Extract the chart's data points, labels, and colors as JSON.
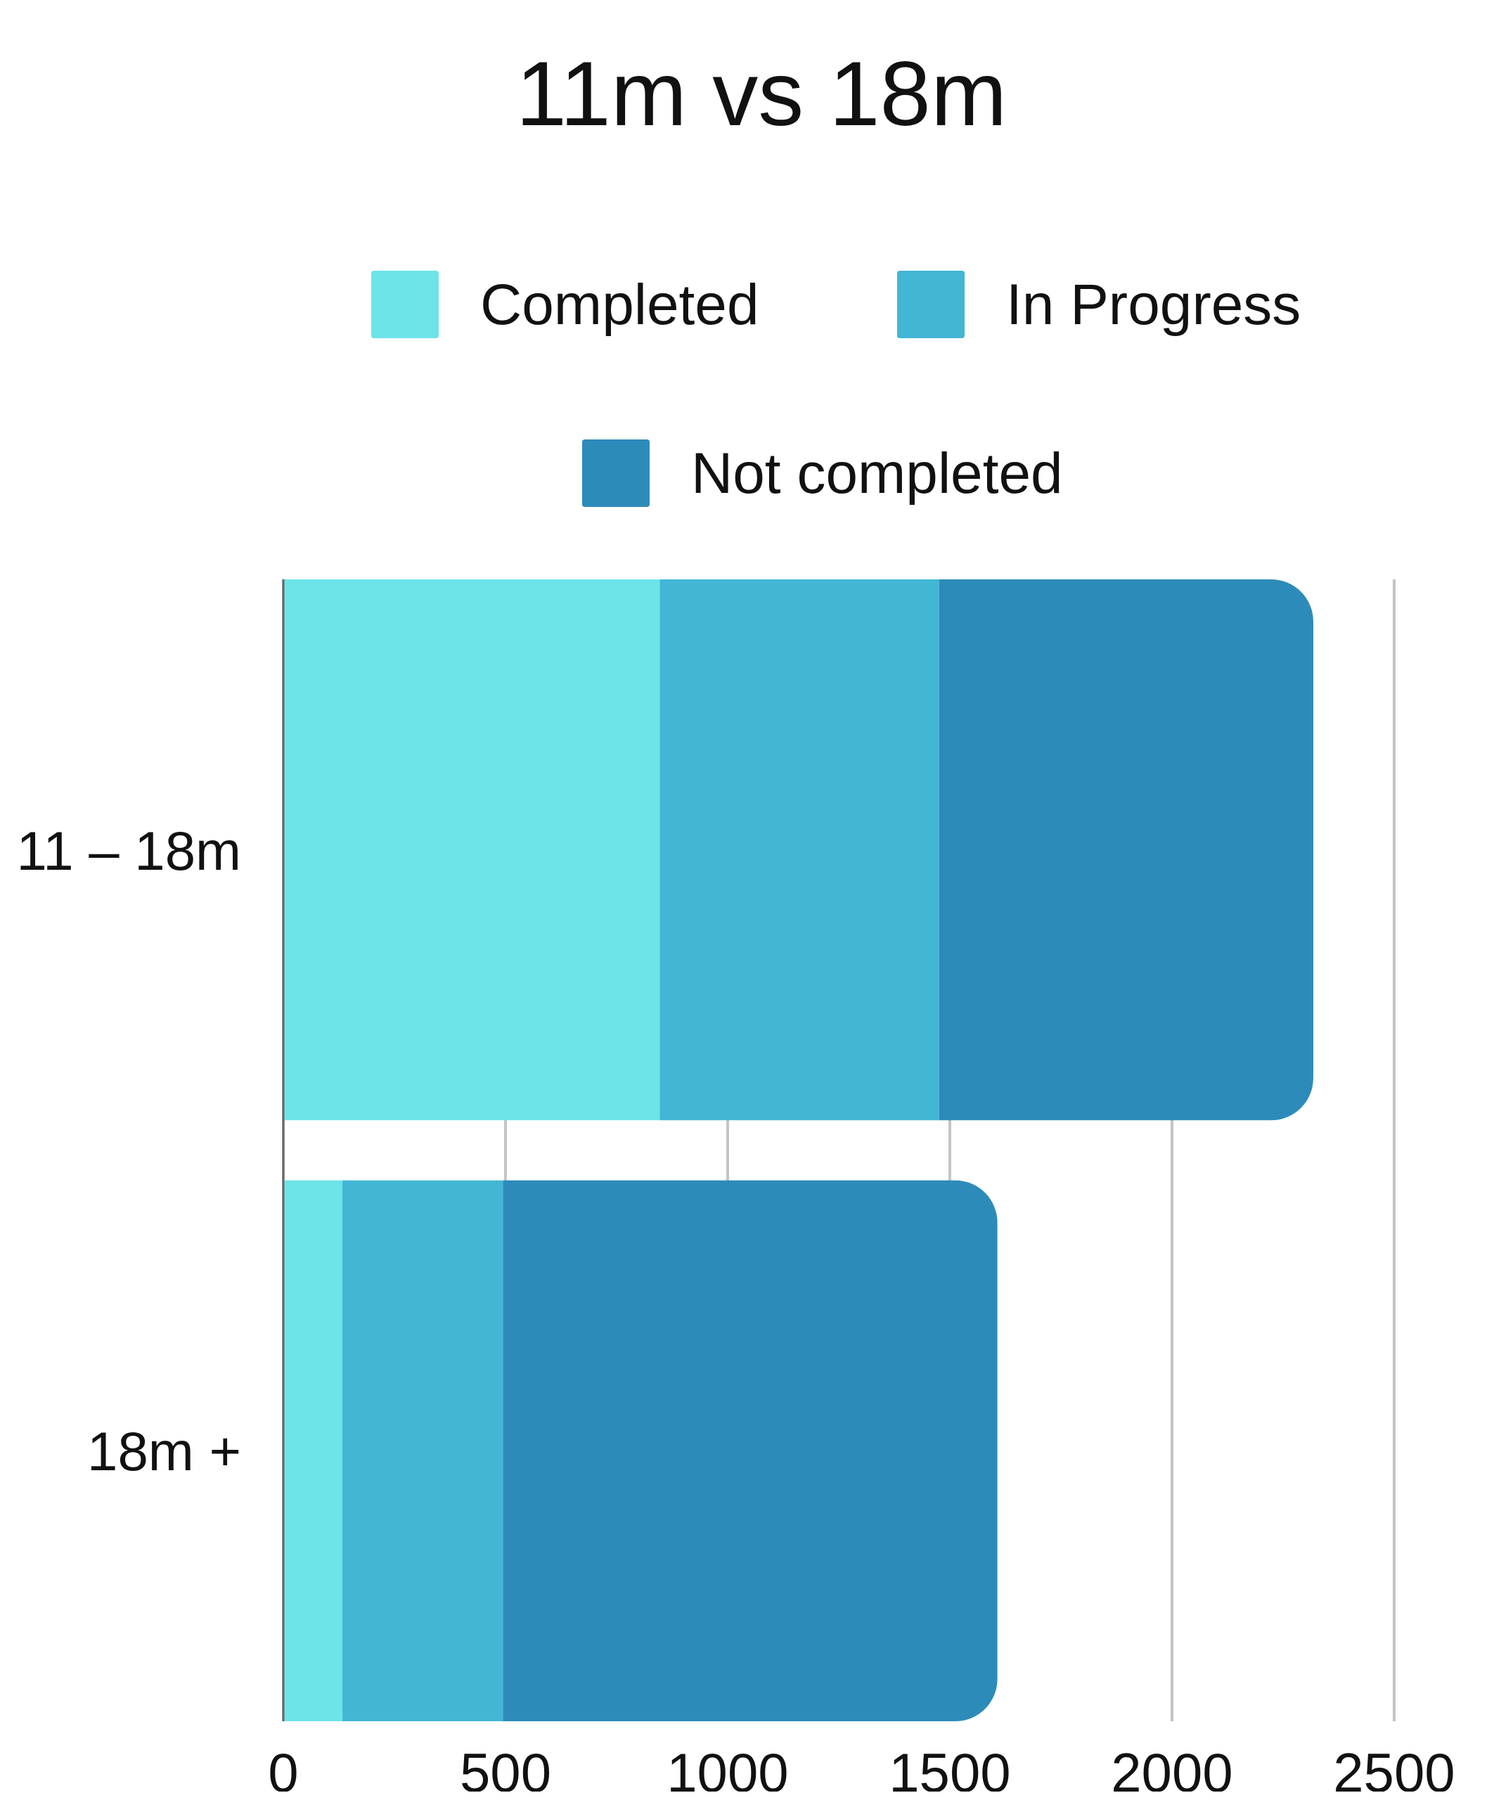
{
  "chart_data": {
    "type": "bar",
    "title": "11m vs 18m",
    "orientation": "horizontal",
    "stacked": true,
    "categories": [
      "11 – 18m",
      "18m +"
    ],
    "series": [
      {
        "name": "Completed",
        "color": "#6ce4e8",
        "values": [
          847,
          133
        ]
      },
      {
        "name": "In Progress",
        "color": "#42b6d5",
        "values": [
          629,
          361
        ]
      },
      {
        "name": "Not completed",
        "color": "#2d8bba",
        "values": [
          842,
          1113
        ]
      }
    ],
    "xlim": [
      0,
      2500
    ],
    "xticks": [
      0,
      500,
      1000,
      1500,
      2000,
      2500
    ],
    "grid": "x",
    "legend": "top"
  }
}
